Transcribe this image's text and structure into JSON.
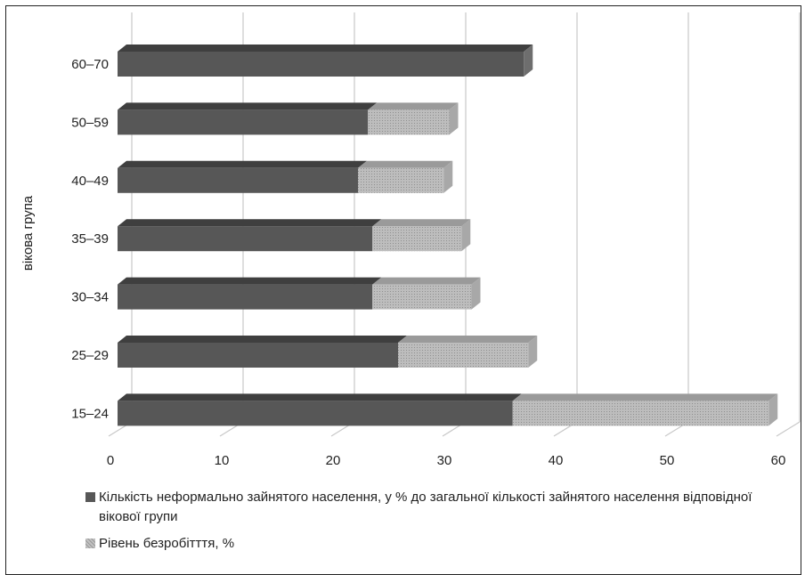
{
  "chart_data": {
    "type": "bar",
    "orientation": "horizontal",
    "stacked": true,
    "ylabel": "вікова група",
    "xlabel": "",
    "xlim": [
      0,
      60
    ],
    "xticks": [
      0,
      10,
      20,
      30,
      40,
      50,
      60
    ],
    "categories": [
      "60–70",
      "50–59",
      "40–49",
      "35–39",
      "30–34",
      "25–29",
      "15–24"
    ],
    "series": [
      {
        "name": "Кількість неформально зайнятого населення, у % до загальної кількості зайнятого населення відповідної вікової групи",
        "color": "#575757",
        "values": [
          36.5,
          22.5,
          21.6,
          22.9,
          22.9,
          25.2,
          35.5
        ]
      },
      {
        "name": "Рівень безробітття, %",
        "color": "#b8b8b8",
        "values": [
          0,
          7.3,
          7.7,
          8.0,
          8.9,
          11.7,
          23.0
        ]
      }
    ],
    "grid": true,
    "legend_position": "bottom"
  }
}
